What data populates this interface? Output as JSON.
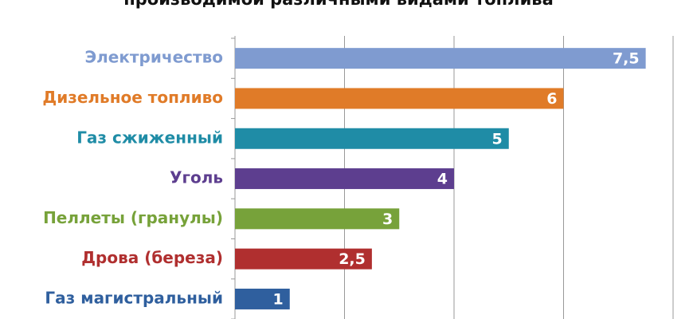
{
  "chart_data": {
    "type": "bar",
    "title": "производимой различными видами топлива",
    "categories": [
      "Электричество",
      "Дизельное топливо",
      "Газ сжиженный",
      "Уголь",
      "Пеллеты (гранулы)",
      "Дрова (береза)",
      "Газ магистральный"
    ],
    "values": [
      7.5,
      6,
      5,
      4,
      3,
      2.5,
      1
    ],
    "value_labels": [
      "7,5",
      "6",
      "5",
      "4",
      "3",
      "2,5",
      "1"
    ],
    "colors": [
      "#7f9bd0",
      "#e07b28",
      "#1f8ca6",
      "#5d3e8f",
      "#77a23a",
      "#b02f2f",
      "#2f5f9e"
    ],
    "xlim": [
      0,
      8
    ],
    "xticks": [
      0,
      2,
      4,
      6,
      8
    ],
    "grid": true
  }
}
